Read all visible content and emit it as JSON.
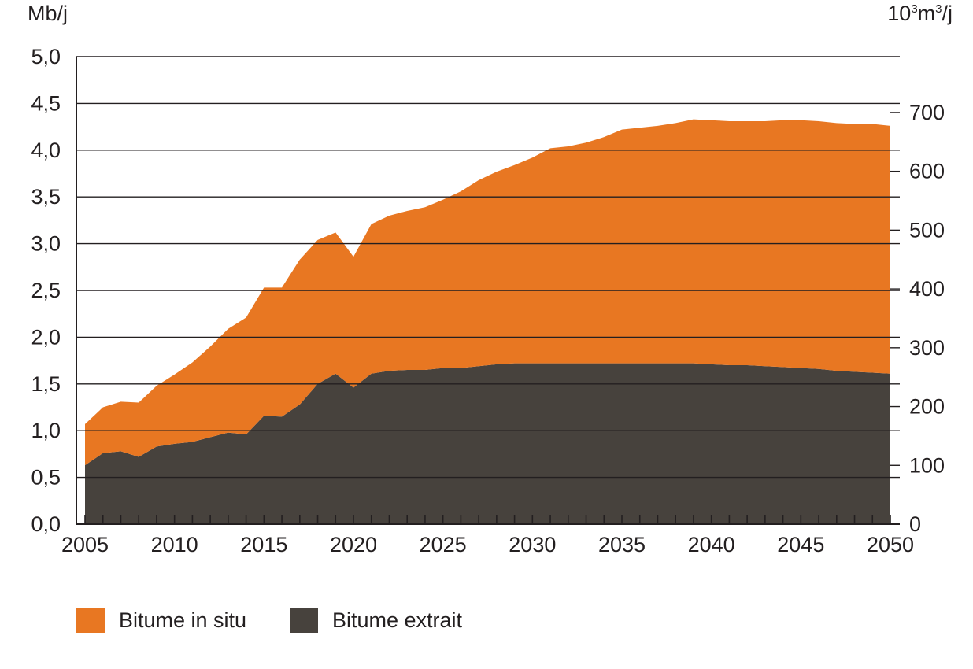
{
  "chart_data": {
    "type": "area",
    "stacked": true,
    "title": "",
    "ylabel": "Mb/j",
    "ylabel_right": "10³m³/j",
    "ylim": [
      0,
      5.0
    ],
    "ylim_right_note_units": "10³m³/j",
    "y_ticks": [
      "0,0",
      "0,5",
      "1,0",
      "1,5",
      "2,0",
      "2,5",
      "3,0",
      "3,5",
      "4,0",
      "4,5",
      "5,0"
    ],
    "y_tick_values": [
      0,
      0.5,
      1.0,
      1.5,
      2.0,
      2.5,
      3.0,
      3.5,
      4.0,
      4.5,
      5.0
    ],
    "y_right_ticks": [
      "0",
      "100",
      "200",
      "300",
      "400",
      "500",
      "600",
      "700"
    ],
    "y_right_tick_values": [
      0,
      100,
      200,
      300,
      400,
      500,
      600,
      700
    ],
    "xlim": [
      2005,
      2050
    ],
    "x_ticks": [
      "2005",
      "2010",
      "2015",
      "2020",
      "2025",
      "2030",
      "2035",
      "2040",
      "2045",
      "2050"
    ],
    "x_tick_values": [
      2005,
      2010,
      2015,
      2020,
      2025,
      2030,
      2035,
      2040,
      2045,
      2050
    ],
    "grid": true,
    "legend_position": "bottom-left",
    "x": [
      2005,
      2006,
      2007,
      2008,
      2009,
      2010,
      2011,
      2012,
      2013,
      2014,
      2015,
      2016,
      2017,
      2018,
      2019,
      2020,
      2021,
      2022,
      2023,
      2024,
      2025,
      2026,
      2027,
      2028,
      2029,
      2030,
      2031,
      2032,
      2033,
      2034,
      2035,
      2036,
      2037,
      2038,
      2039,
      2040,
      2041,
      2042,
      2043,
      2044,
      2045,
      2046,
      2047,
      2048,
      2049,
      2050
    ],
    "series": [
      {
        "name": "Bitume extrait",
        "color": "#47423d",
        "values": [
          0.63,
          0.76,
          0.78,
          0.72,
          0.83,
          0.86,
          0.88,
          0.93,
          0.98,
          0.96,
          1.16,
          1.15,
          1.28,
          1.5,
          1.61,
          1.46,
          1.61,
          1.64,
          1.65,
          1.65,
          1.67,
          1.67,
          1.69,
          1.71,
          1.72,
          1.72,
          1.72,
          1.72,
          1.72,
          1.72,
          1.72,
          1.72,
          1.72,
          1.72,
          1.72,
          1.71,
          1.7,
          1.7,
          1.69,
          1.68,
          1.67,
          1.66,
          1.64,
          1.63,
          1.62,
          1.61
        ]
      },
      {
        "name": "Bitume in situ",
        "color": "#e87722",
        "values": [
          0.44,
          0.49,
          0.53,
          0.58,
          0.65,
          0.74,
          0.85,
          0.97,
          1.11,
          1.25,
          1.37,
          1.38,
          1.55,
          1.54,
          1.51,
          1.4,
          1.6,
          1.66,
          1.7,
          1.74,
          1.8,
          1.89,
          1.99,
          2.06,
          2.12,
          2.2,
          2.3,
          2.32,
          2.36,
          2.42,
          2.5,
          2.52,
          2.54,
          2.57,
          2.61,
          2.61,
          2.61,
          2.61,
          2.62,
          2.64,
          2.65,
          2.65,
          2.65,
          2.65,
          2.66,
          2.65
        ]
      }
    ]
  },
  "legend": [
    {
      "label": "Bitume in situ",
      "color": "#e87722"
    },
    {
      "label": "Bitume extrait",
      "color": "#47423d"
    }
  ]
}
